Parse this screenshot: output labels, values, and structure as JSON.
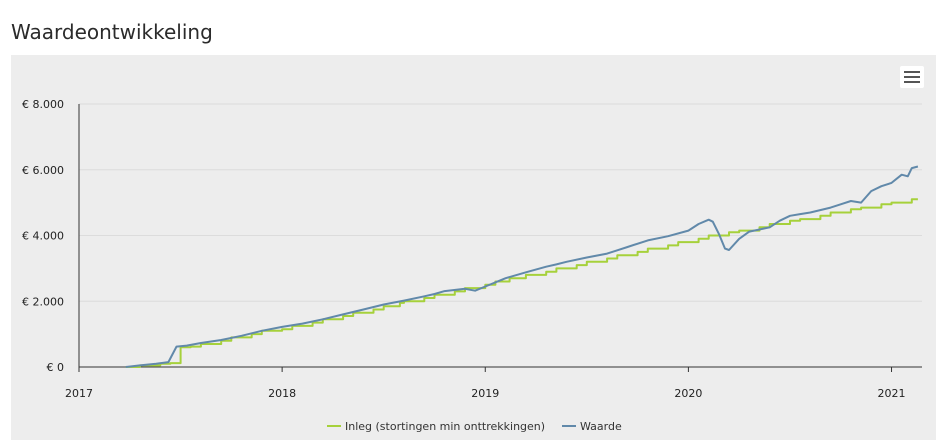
{
  "page": {
    "title": "Waardeontwikkeling"
  },
  "menu": {
    "icon": "hamburger-menu-icon"
  },
  "chart_data": {
    "type": "line",
    "title": "",
    "xlabel": "",
    "ylabel": "",
    "x_ticks": [
      "2017",
      "2018",
      "2019",
      "2020",
      "2021"
    ],
    "y_ticks": [
      "€ 0",
      "€ 2.000",
      "€ 4.000",
      "€ 6.000",
      "€ 8.000"
    ],
    "xlim": [
      2017.0,
      2021.15
    ],
    "ylim": [
      0,
      8000
    ],
    "grid": true,
    "legend_position": "bottom-center",
    "series": [
      {
        "name": "Inleg (stortingen min onttrekkingen)",
        "color": "#a6d13b",
        "step": true,
        "x": [
          2017.23,
          2017.3,
          2017.4,
          2017.45,
          2017.5,
          2017.55,
          2017.6,
          2017.7,
          2017.75,
          2017.85,
          2017.9,
          2018.0,
          2018.05,
          2018.15,
          2018.2,
          2018.3,
          2018.35,
          2018.45,
          2018.5,
          2018.58,
          2018.6,
          2018.7,
          2018.75,
          2018.85,
          2018.9,
          2019.0,
          2019.05,
          2019.12,
          2019.2,
          2019.3,
          2019.35,
          2019.45,
          2019.5,
          2019.6,
          2019.65,
          2019.75,
          2019.8,
          2019.9,
          2019.95,
          2020.05,
          2020.1,
          2020.2,
          2020.25,
          2020.35,
          2020.4,
          2020.5,
          2020.55,
          2020.65,
          2020.7,
          2020.8,
          2020.85,
          2020.95,
          2021.0,
          2021.1,
          2021.13
        ],
        "values": [
          0,
          50,
          100,
          120,
          600,
          620,
          700,
          800,
          900,
          1000,
          1100,
          1150,
          1250,
          1350,
          1450,
          1550,
          1650,
          1750,
          1850,
          1950,
          2000,
          2100,
          2200,
          2300,
          2400,
          2500,
          2600,
          2700,
          2800,
          2900,
          3000,
          3100,
          3200,
          3300,
          3400,
          3500,
          3600,
          3700,
          3800,
          3900,
          4000,
          4100,
          4150,
          4250,
          4350,
          4450,
          4500,
          4600,
          4700,
          4800,
          4850,
          4950,
          5000,
          5100,
          5100
        ]
      },
      {
        "name": "Waarde",
        "color": "#6189aa",
        "step": false,
        "x": [
          2017.23,
          2017.3,
          2017.38,
          2017.44,
          2017.48,
          2017.53,
          2017.6,
          2017.7,
          2017.8,
          2017.9,
          2018.0,
          2018.1,
          2018.2,
          2018.3,
          2018.4,
          2018.5,
          2018.6,
          2018.7,
          2018.75,
          2018.8,
          2018.9,
          2018.95,
          2019.0,
          2019.1,
          2019.2,
          2019.3,
          2019.35,
          2019.4,
          2019.5,
          2019.6,
          2019.65,
          2019.7,
          2019.8,
          2019.9,
          2020.0,
          2020.05,
          2020.1,
          2020.12,
          2020.15,
          2020.18,
          2020.2,
          2020.25,
          2020.3,
          2020.4,
          2020.45,
          2020.5,
          2020.55,
          2020.6,
          2020.7,
          2020.75,
          2020.8,
          2020.85,
          2020.9,
          2020.95,
          2021.0,
          2021.05,
          2021.08,
          2021.1,
          2021.13
        ],
        "values": [
          0,
          50,
          100,
          150,
          620,
          650,
          730,
          820,
          950,
          1100,
          1220,
          1320,
          1450,
          1600,
          1750,
          1900,
          2020,
          2150,
          2220,
          2310,
          2380,
          2320,
          2450,
          2700,
          2880,
          3050,
          3120,
          3200,
          3330,
          3450,
          3550,
          3650,
          3850,
          3980,
          4150,
          4350,
          4480,
          4420,
          4050,
          3600,
          3560,
          3900,
          4120,
          4250,
          4450,
          4600,
          4650,
          4700,
          4850,
          4950,
          5050,
          5000,
          5350,
          5500,
          5600,
          5850,
          5800,
          6050,
          6100
        ]
      }
    ]
  }
}
